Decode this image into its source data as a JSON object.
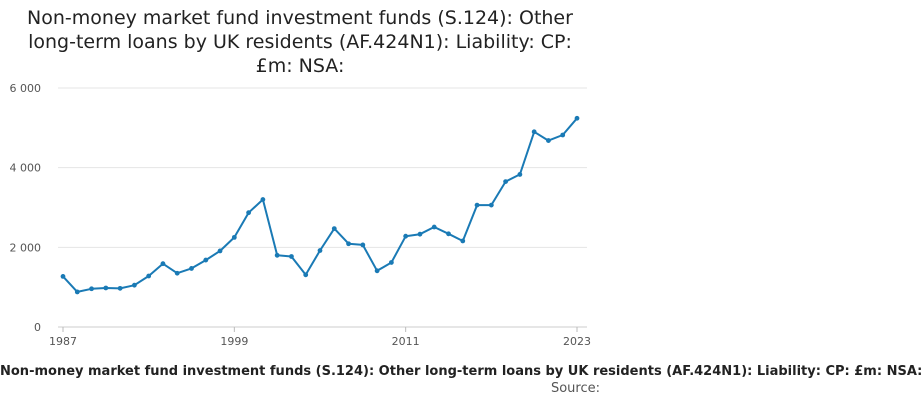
{
  "chart_data": {
    "type": "line",
    "title": "Non-money market fund investment funds (S.124): Other long-term loans by UK residents (AF.424N1): Liability: CP: £m: NSA:",
    "x": [
      1987,
      1988,
      1989,
      1990,
      1991,
      1992,
      1993,
      1994,
      1995,
      1996,
      1997,
      1998,
      1999,
      2000,
      2001,
      2002,
      2003,
      2004,
      2005,
      2006,
      2007,
      2008,
      2009,
      2010,
      2011,
      2012,
      2013,
      2014,
      2015,
      2016,
      2017,
      2018,
      2019,
      2020,
      2021,
      2022,
      2023
    ],
    "series": [
      {
        "values": [
          1270,
          880,
          960,
          980,
          970,
          1050,
          1280,
          1590,
          1350,
          1470,
          1680,
          1910,
          2250,
          2870,
          3200,
          1800,
          1770,
          1310,
          1920,
          2470,
          2090,
          2060,
          1410,
          1620,
          2280,
          2330,
          2510,
          2340,
          2160,
          3060,
          3060,
          3650,
          3830,
          4900,
          4680,
          4820,
          5240
        ]
      }
    ],
    "x_ticks": [
      "1987",
      "1999",
      "2011",
      "2023"
    ],
    "y_ticks": [
      "0",
      "2 000",
      "4 000",
      "6 000"
    ],
    "y_tick_values": [
      0,
      2000,
      4000,
      6000
    ],
    "xlim": [
      1987,
      2023
    ],
    "ylim": [
      0,
      6000
    ],
    "grid": "horizontal",
    "line_color": "#1a7ab5"
  },
  "footer": {
    "series_label": "Non-money market fund investment funds (S.124): Other long-term loans by UK residents (AF.424N1): Liability: CP: £m: NSA:",
    "source_label": "Source:"
  }
}
